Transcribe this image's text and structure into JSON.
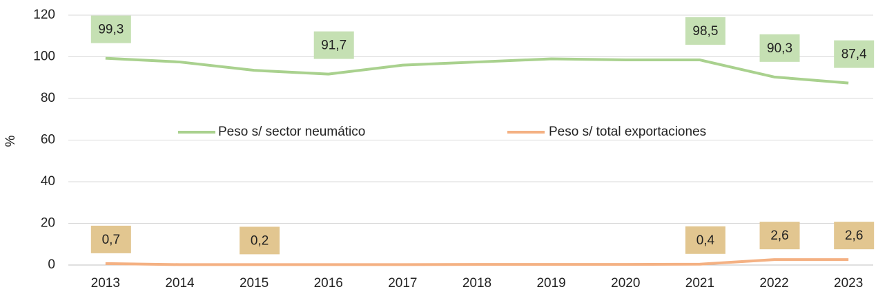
{
  "chart_data": {
    "type": "line",
    "y_label": "%",
    "categories": [
      "2013",
      "2014",
      "2015",
      "2016",
      "2017",
      "2018",
      "2019",
      "2020",
      "2021",
      "2022",
      "2023"
    ],
    "series": [
      {
        "name": "Peso s/ sector neumático",
        "color": "#a9d18e",
        "values": [
          99.3,
          97.5,
          93.5,
          91.7,
          96,
          97.5,
          99,
          98.5,
          98.5,
          90.3,
          87.4
        ],
        "value_labels": [
          "99,3",
          null,
          null,
          "91,7",
          null,
          null,
          null,
          null,
          "98,5",
          "90,3",
          "87,4"
        ],
        "label_color": "#c5e0b3"
      },
      {
        "name": "Peso s/ total exportaciones",
        "color": "#f4b183",
        "values": [
          0.7,
          0.2,
          0.2,
          0.2,
          0.2,
          0.3,
          0.3,
          0.3,
          0.4,
          2.6,
          2.6
        ],
        "value_labels": [
          "0,7",
          null,
          "0,2",
          null,
          null,
          null,
          null,
          null,
          "0,4",
          "2,6",
          "2,6"
        ],
        "label_color": "#e2c690"
      }
    ],
    "ylim": [
      0,
      120
    ],
    "yticks": [
      0,
      20,
      40,
      60,
      80,
      100,
      120
    ],
    "grid": true
  }
}
